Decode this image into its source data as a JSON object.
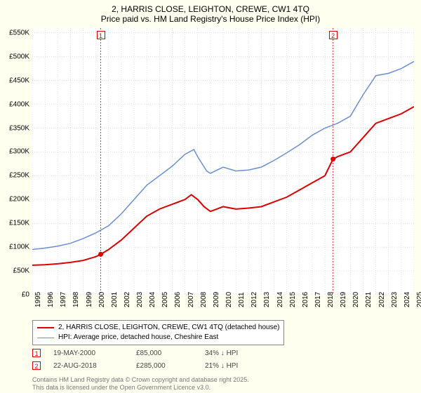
{
  "title": {
    "line1": "2, HARRIS CLOSE, LEIGHTON, CREWE, CW1 4TQ",
    "line2": "Price paid vs. HM Land Registry's House Price Index (HPI)",
    "fontsize": 12,
    "color": "#000000"
  },
  "chart": {
    "type": "line",
    "background_color": "#ffffff",
    "plot_background": "#ffffff",
    "page_background": "#fffff0",
    "grid_color": "#d4d4d4",
    "grid_dash": "1,2",
    "x": {
      "min": 1995,
      "max": 2025,
      "ticks": [
        1995,
        1996,
        1997,
        1998,
        1999,
        2000,
        2001,
        2002,
        2003,
        2004,
        2005,
        2006,
        2007,
        2008,
        2009,
        2010,
        2011,
        2012,
        2013,
        2014,
        2015,
        2016,
        2017,
        2018,
        2019,
        2020,
        2021,
        2022,
        2023,
        2024,
        2025
      ],
      "label_fontsize": 10
    },
    "y": {
      "min": 0,
      "max": 560000,
      "ticks": [
        0,
        50000,
        100000,
        150000,
        200000,
        250000,
        300000,
        350000,
        400000,
        450000,
        500000,
        550000
      ],
      "tick_labels": [
        "£0",
        "£50K",
        "£100K",
        "£150K",
        "£200K",
        "£250K",
        "£300K",
        "£350K",
        "£400K",
        "£450K",
        "£500K",
        "£550K"
      ],
      "label_fontsize": 10
    },
    "series": [
      {
        "name": "price_paid",
        "label": "2, HARRIS CLOSE, LEIGHTON, CREWE, CW1 4TQ (detached house)",
        "color": "#dd0000",
        "line_width": 2,
        "data": [
          [
            1995,
            62000
          ],
          [
            1996,
            63000
          ],
          [
            1997,
            65000
          ],
          [
            1998,
            68000
          ],
          [
            1999,
            72000
          ],
          [
            2000,
            80000
          ],
          [
            2000.38,
            85000
          ],
          [
            2001,
            95000
          ],
          [
            2002,
            115000
          ],
          [
            2003,
            140000
          ],
          [
            2004,
            165000
          ],
          [
            2005,
            180000
          ],
          [
            2006,
            190000
          ],
          [
            2007,
            200000
          ],
          [
            2007.5,
            210000
          ],
          [
            2008,
            200000
          ],
          [
            2008.5,
            185000
          ],
          [
            2009,
            175000
          ],
          [
            2010,
            185000
          ],
          [
            2011,
            180000
          ],
          [
            2012,
            182000
          ],
          [
            2013,
            185000
          ],
          [
            2014,
            195000
          ],
          [
            2015,
            205000
          ],
          [
            2016,
            220000
          ],
          [
            2017,
            235000
          ],
          [
            2018,
            250000
          ],
          [
            2018.64,
            285000
          ],
          [
            2019,
            290000
          ],
          [
            2020,
            300000
          ],
          [
            2021,
            330000
          ],
          [
            2022,
            360000
          ],
          [
            2023,
            370000
          ],
          [
            2024,
            380000
          ],
          [
            2025,
            395000
          ]
        ]
      },
      {
        "name": "hpi",
        "label": "HPI: Average price, detached house, Cheshire East",
        "color": "#6a8fd0",
        "line_width": 1.5,
        "data": [
          [
            1995,
            95000
          ],
          [
            1996,
            98000
          ],
          [
            1997,
            102000
          ],
          [
            1998,
            108000
          ],
          [
            1999,
            118000
          ],
          [
            2000,
            130000
          ],
          [
            2001,
            145000
          ],
          [
            2002,
            170000
          ],
          [
            2003,
            200000
          ],
          [
            2004,
            230000
          ],
          [
            2005,
            250000
          ],
          [
            2006,
            270000
          ],
          [
            2007,
            295000
          ],
          [
            2007.7,
            305000
          ],
          [
            2008,
            290000
          ],
          [
            2008.7,
            260000
          ],
          [
            2009,
            255000
          ],
          [
            2010,
            268000
          ],
          [
            2011,
            260000
          ],
          [
            2012,
            262000
          ],
          [
            2013,
            268000
          ],
          [
            2014,
            282000
          ],
          [
            2015,
            298000
          ],
          [
            2016,
            315000
          ],
          [
            2017,
            335000
          ],
          [
            2018,
            350000
          ],
          [
            2019,
            360000
          ],
          [
            2020,
            375000
          ],
          [
            2021,
            420000
          ],
          [
            2022,
            460000
          ],
          [
            2023,
            465000
          ],
          [
            2024,
            475000
          ],
          [
            2025,
            490000
          ]
        ]
      }
    ],
    "sale_markers": [
      {
        "badge": "1",
        "year": 2000.38,
        "date": "19-MAY-2000",
        "price": "£85,000",
        "delta": "34% ↓ HPI",
        "dot_color": "#dd0000",
        "vline_color": "#dd0000",
        "vline_dash": "2,2"
      },
      {
        "badge": "2",
        "year": 2018.64,
        "date": "22-AUG-2018",
        "price": "£285,000",
        "delta": "21% ↓ HPI",
        "dot_color": "#dd0000",
        "vline_color": "#dd0000",
        "vline_dash": "2,2"
      }
    ]
  },
  "legend": {
    "border_color": "#888888",
    "fontsize": 10
  },
  "footer": {
    "line1": "Contains HM Land Registry data © Crown copyright and database right 2025.",
    "line2": "This data is licensed under the Open Government Licence v3.0.",
    "color": "#777777",
    "fontsize": 9
  }
}
